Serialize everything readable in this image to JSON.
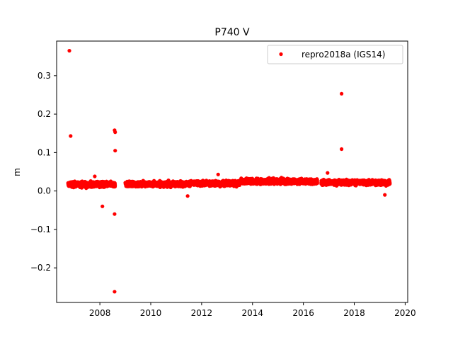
{
  "chart_data": {
    "type": "scatter",
    "title": "P740 V",
    "xlabel": "",
    "ylabel": "m",
    "xlim": [
      2006.3,
      2020.1
    ],
    "ylim": [
      -0.29,
      0.39
    ],
    "xticks": [
      2008,
      2010,
      2012,
      2014,
      2016,
      2018,
      2020
    ],
    "yticks": [
      -0.2,
      -0.1,
      0.0,
      0.1,
      0.2,
      0.3
    ],
    "ytick_labels": [
      "−0.2",
      "−0.1",
      "0.0",
      "0.1",
      "0.2",
      "0.3"
    ],
    "grid": false,
    "legend_position": "top-right",
    "series": [
      {
        "name": "repro2018a (IGS14)",
        "color": "#ff0000",
        "marker": "circle",
        "dense_segments": [
          {
            "x_start": 2006.75,
            "x_end": 2008.6,
            "center": 0.017,
            "spread": 0.011
          },
          {
            "x_start": 2009.0,
            "x_end": 2011.5,
            "center": 0.018,
            "spread": 0.011
          },
          {
            "x_start": 2011.5,
            "x_end": 2013.5,
            "center": 0.02,
            "spread": 0.011
          },
          {
            "x_start": 2013.5,
            "x_end": 2016.55,
            "center": 0.025,
            "spread": 0.011
          },
          {
            "x_start": 2016.7,
            "x_end": 2019.4,
            "center": 0.022,
            "spread": 0.011
          }
        ],
        "outliers": [
          {
            "x": 2006.8,
            "y": 0.365
          },
          {
            "x": 2006.85,
            "y": 0.143
          },
          {
            "x": 2008.1,
            "y": -0.04
          },
          {
            "x": 2007.8,
            "y": 0.038
          },
          {
            "x": 2008.58,
            "y": 0.158
          },
          {
            "x": 2008.6,
            "y": 0.153
          },
          {
            "x": 2008.6,
            "y": 0.105
          },
          {
            "x": 2008.58,
            "y": -0.06
          },
          {
            "x": 2008.58,
            "y": -0.262
          },
          {
            "x": 2012.65,
            "y": 0.043
          },
          {
            "x": 2016.95,
            "y": 0.047
          },
          {
            "x": 2017.5,
            "y": 0.253
          },
          {
            "x": 2017.5,
            "y": 0.109
          },
          {
            "x": 2011.45,
            "y": -0.013
          },
          {
            "x": 2019.2,
            "y": -0.01
          }
        ]
      }
    ]
  }
}
